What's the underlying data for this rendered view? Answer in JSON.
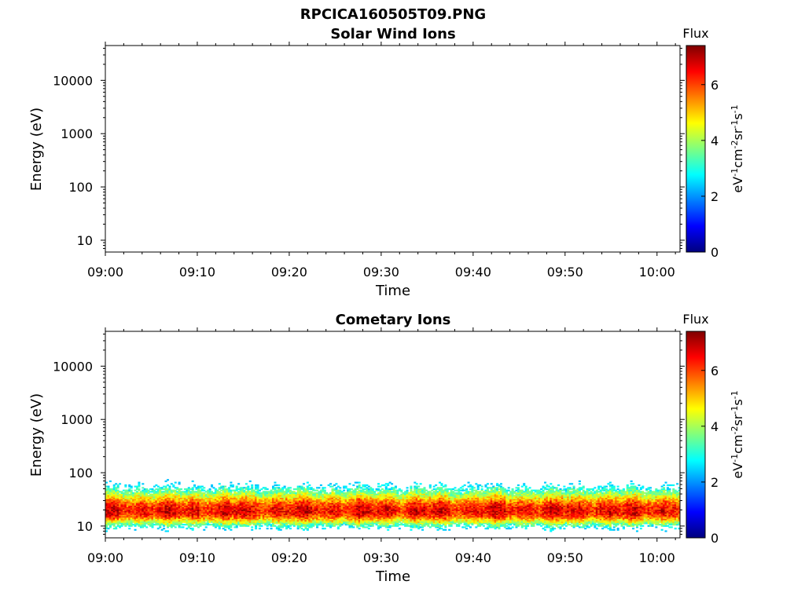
{
  "figure": {
    "filename": "RPCICA160505T09.PNG",
    "colorbar": {
      "title": "Flux",
      "label_base": "eV",
      "label_parts": [
        {
          "base": "eV",
          "exp": "-1"
        },
        {
          "base": "cm",
          "exp": "-2"
        },
        {
          "base": "sr",
          "exp": "-1"
        },
        {
          "base": "s",
          "exp": "-1"
        }
      ],
      "ticks": [
        "0",
        "2",
        "4",
        "6"
      ],
      "range": [
        0,
        7.4
      ],
      "colors": [
        "#00007f",
        "#0000ff",
        "#007fff",
        "#00ffff",
        "#7fff7f",
        "#ffff00",
        "#ff7f00",
        "#ff0000",
        "#7f0000"
      ]
    }
  },
  "chart_data": [
    {
      "type": "heatmap",
      "title": "Solar Wind Ions",
      "xlabel": "Time",
      "ylabel": "Energy (eV)",
      "x_ticks": [
        "09:00",
        "09:10",
        "09:20",
        "09:30",
        "09:40",
        "09:50",
        "10:00"
      ],
      "y_ticks": [
        "10",
        "100",
        "1000",
        "10000"
      ],
      "y_scale": "log",
      "ylim": [
        6,
        45000
      ],
      "xlim_minutes": [
        0,
        62.5
      ],
      "flux_band": null
    },
    {
      "type": "heatmap",
      "title": "Cometary Ions",
      "xlabel": "Time",
      "ylabel": "Energy (eV)",
      "x_ticks": [
        "09:00",
        "09:10",
        "09:20",
        "09:30",
        "09:40",
        "09:50",
        "10:00"
      ],
      "y_ticks": [
        "10",
        "100",
        "1000",
        "10000"
      ],
      "y_scale": "log",
      "ylim": [
        6,
        45000
      ],
      "xlim_minutes": [
        0,
        62.5
      ],
      "flux_band": {
        "energy_min_eV": 7,
        "energy_max_eV": 85,
        "peak_energy_eV": 19,
        "peak_flux": 6.5,
        "levels": [
          {
            "energy_range": [
              55,
              85
            ],
            "flux": 3
          },
          {
            "energy_range": [
              35,
              55
            ],
            "flux": 3.8
          },
          {
            "energy_range": [
              27,
              35
            ],
            "flux": 5
          },
          {
            "energy_range": [
              14,
              27
            ],
            "flux": 6.3
          },
          {
            "energy_range": [
              11,
              14
            ],
            "flux": 5
          },
          {
            "energy_range": [
              7,
              11
            ],
            "flux": 3.5
          }
        ]
      }
    }
  ]
}
